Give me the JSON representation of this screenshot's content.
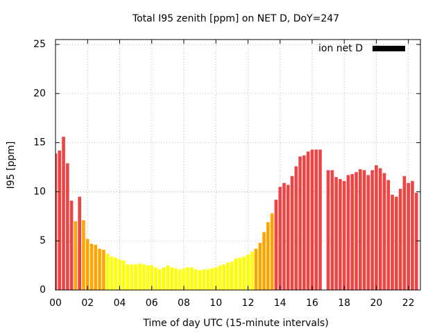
{
  "chart_data": {
    "type": "bar",
    "title": "Total I95 zenith [ppm] on NET D, DoY=247",
    "x_label": "Time of day UTC (15-minute intervals)",
    "y_label": "I95 [ppm]",
    "x": [
      0,
      0.25,
      0.5,
      0.75,
      1,
      1.25,
      1.5,
      1.75,
      2,
      2.25,
      2.5,
      2.75,
      3,
      3.25,
      3.5,
      3.75,
      4,
      4.25,
      4.5,
      4.75,
      5,
      5.25,
      5.5,
      5.75,
      6,
      6.25,
      6.5,
      6.75,
      7,
      7.25,
      7.5,
      7.75,
      8,
      8.25,
      8.5,
      8.75,
      9,
      9.25,
      9.5,
      9.75,
      10,
      10.25,
      10.5,
      10.75,
      11,
      11.25,
      11.5,
      11.75,
      12,
      12.25,
      12.5,
      12.75,
      13,
      13.25,
      13.5,
      13.75,
      14,
      14.25,
      14.5,
      14.75,
      15,
      15.25,
      15.5,
      15.75,
      16,
      16.25,
      16.5,
      16.75,
      17,
      17.25,
      17.5,
      17.75,
      18,
      18.25,
      18.5,
      18.75,
      19,
      19.25,
      19.5,
      19.75,
      20,
      20.25,
      20.5,
      20.75,
      21,
      21.25,
      21.5,
      21.75,
      22,
      22.25,
      22.5
    ],
    "series": [
      {
        "name": "ion net D",
        "color": "#000000",
        "values": [
          13.9,
          14.2,
          15.6,
          12.9,
          9.1,
          7.0,
          9.5,
          7.1,
          5.2,
          4.7,
          4.6,
          4.2,
          4.1,
          3.7,
          3.4,
          3.3,
          3.1,
          3.0,
          2.6,
          2.6,
          2.6,
          2.7,
          2.6,
          2.5,
          2.5,
          2.3,
          2.1,
          2.3,
          2.5,
          2.3,
          2.2,
          2.1,
          2.2,
          2.3,
          2.3,
          2.1,
          2.0,
          2.1,
          2.1,
          2.2,
          2.3,
          2.5,
          2.6,
          2.8,
          2.9,
          3.2,
          3.3,
          3.4,
          3.6,
          3.9,
          4.2,
          4.8,
          5.9,
          6.9,
          7.8,
          9.2,
          10.5,
          10.9,
          10.7,
          11.6,
          12.6,
          13.6,
          13.7,
          14.1,
          14.3,
          14.3,
          14.3,
          null,
          12.2,
          12.2,
          11.5,
          11.3,
          11.1,
          11.7,
          11.8,
          12.0,
          12.3,
          12.2,
          11.7,
          12.2,
          12.7,
          12.4,
          11.9,
          11.2,
          9.7,
          9.5,
          10.3,
          11.6,
          10.9,
          11.1,
          9.9
        ],
        "colors": [
          "#ee4444",
          "#ee4444",
          "#ee4444",
          "#ee4444",
          "#ee4444",
          "#ffa500",
          "#ee4444",
          "#ffa500",
          "#ffa500",
          "#ffa500",
          "#ffa500",
          "#ffa500",
          "#ffa500",
          "#ffff00",
          "#ffff00",
          "#ffff00",
          "#ffff00",
          "#ffff00",
          "#ffff00",
          "#ffff00",
          "#ffff00",
          "#ffff00",
          "#ffff00",
          "#ffff00",
          "#ffff00",
          "#ffff00",
          "#ffff00",
          "#ffff00",
          "#ffff00",
          "#ffff00",
          "#ffff00",
          "#ffff00",
          "#ffff00",
          "#ffff00",
          "#ffff00",
          "#ffff00",
          "#ffff00",
          "#ffff00",
          "#ffff00",
          "#ffff00",
          "#ffff00",
          "#ffff00",
          "#ffff00",
          "#ffff00",
          "#ffff00",
          "#ffff00",
          "#ffff00",
          "#ffff00",
          "#ffff00",
          "#ffff00",
          "#ffa500",
          "#ffa500",
          "#ffa500",
          "#ffa500",
          "#ffa500",
          "#ee4444",
          "#ee4444",
          "#ee4444",
          "#ee4444",
          "#ee4444",
          "#ee4444",
          "#ee4444",
          "#ee4444",
          "#ee4444",
          "#ee4444",
          "#ee4444",
          "#ee4444",
          null,
          "#ee4444",
          "#ee4444",
          "#ee4444",
          "#ee4444",
          "#ee4444",
          "#ee4444",
          "#ee4444",
          "#ee4444",
          "#ee4444",
          "#ee4444",
          "#ee4444",
          "#ee4444",
          "#ee4444",
          "#ee4444",
          "#ee4444",
          "#ee4444",
          "#ee4444",
          "#ee4444",
          "#ee4444",
          "#ee4444",
          "#ee4444",
          "#ee4444",
          "#ee4444"
        ]
      }
    ],
    "xlim": [
      0,
      22.75
    ],
    "xticks": [
      {
        "value": 0,
        "label": "00"
      },
      {
        "value": 2,
        "label": "02"
      },
      {
        "value": 4,
        "label": "04"
      },
      {
        "value": 6,
        "label": "06"
      },
      {
        "value": 8,
        "label": "08"
      },
      {
        "value": 10,
        "label": "10"
      },
      {
        "value": 12,
        "label": "12"
      },
      {
        "value": 14,
        "label": "14"
      },
      {
        "value": 16,
        "label": "16"
      },
      {
        "value": 18,
        "label": "18"
      },
      {
        "value": 20,
        "label": "20"
      },
      {
        "value": 22,
        "label": "22"
      }
    ],
    "ylim": [
      0,
      25.5
    ],
    "yticks": [
      0,
      5,
      10,
      15,
      20,
      25
    ],
    "grid": true,
    "legend": "top-right"
  }
}
